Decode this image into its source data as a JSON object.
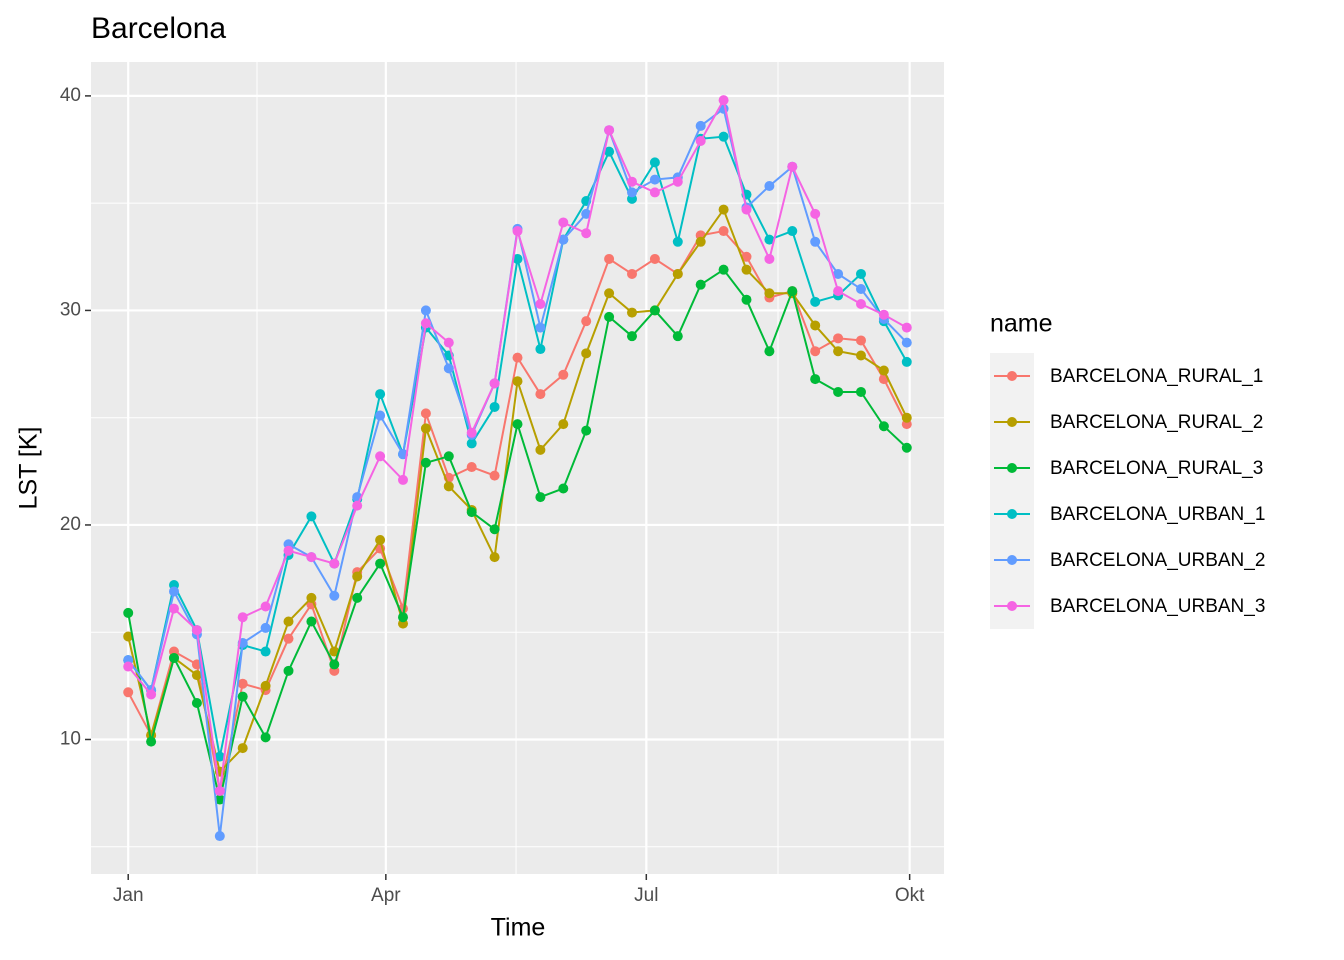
{
  "chart_data": {
    "type": "line",
    "title": "Barcelona",
    "x_label": "Time",
    "y_label": "LST [K]",
    "legend_title": "name",
    "legend_position": "right",
    "grid": true,
    "x": [
      0,
      8,
      16,
      24,
      32,
      40,
      48,
      56,
      64,
      72,
      80,
      88,
      96,
      104,
      112,
      120,
      128,
      136,
      144,
      152,
      160,
      168,
      176,
      184,
      192,
      200,
      208,
      216,
      224,
      232,
      240,
      248,
      256,
      264,
      272
    ],
    "xlim": [
      -13,
      285
    ],
    "xticks": [
      {
        "value": 0,
        "label": "Jan"
      },
      {
        "value": 90,
        "label": "Apr"
      },
      {
        "value": 181,
        "label": "Jul"
      },
      {
        "value": 273,
        "label": "Okt"
      }
    ],
    "ylim": [
      3.73,
      41.58
    ],
    "yticks": [
      10,
      20,
      30,
      40
    ],
    "series": [
      {
        "name": "BARCELONA_RURAL_1",
        "color": "#F8766D",
        "values": [
          12.2,
          10.2,
          14.1,
          13.5,
          7.6,
          12.6,
          12.3,
          14.7,
          16.3,
          13.2,
          17.8,
          18.9,
          16.1,
          25.2,
          22.2,
          22.7,
          22.3,
          27.8,
          26.1,
          27.0,
          29.5,
          32.4,
          31.7,
          32.4,
          31.7,
          33.5,
          33.7,
          32.5,
          30.6,
          30.9,
          28.1,
          28.7,
          28.6,
          26.8,
          24.7
        ]
      },
      {
        "name": "BARCELONA_RURAL_2",
        "color": "#B79F00",
        "values": [
          14.8,
          10.2,
          13.8,
          13.0,
          8.5,
          9.6,
          12.5,
          15.5,
          16.6,
          14.1,
          17.6,
          19.3,
          15.4,
          24.5,
          21.8,
          20.7,
          18.5,
          26.7,
          23.5,
          24.7,
          28.0,
          30.8,
          29.9,
          30.0,
          31.7,
          33.2,
          34.7,
          31.9,
          30.8,
          30.8,
          29.3,
          28.1,
          27.9,
          27.2,
          25.0
        ]
      },
      {
        "name": "BARCELONA_RURAL_3",
        "color": "#00BA38",
        "values": [
          15.9,
          9.9,
          13.8,
          11.7,
          7.2,
          12.0,
          10.1,
          13.2,
          15.5,
          13.5,
          16.6,
          18.2,
          15.7,
          22.9,
          23.2,
          20.6,
          19.8,
          24.7,
          21.3,
          21.7,
          24.4,
          29.7,
          28.8,
          30.0,
          28.8,
          31.2,
          31.9,
          30.5,
          28.1,
          30.9,
          26.8,
          26.2,
          26.2,
          24.6,
          23.6
        ]
      },
      {
        "name": "BARCELONA_URBAN_1",
        "color": "#00BFC4",
        "values": [
          13.7,
          12.3,
          17.2,
          15.1,
          9.2,
          14.4,
          14.1,
          18.6,
          20.4,
          18.2,
          21.2,
          26.1,
          23.3,
          29.2,
          27.9,
          23.8,
          25.5,
          32.4,
          28.2,
          33.3,
          35.1,
          37.4,
          35.2,
          36.9,
          33.2,
          38.0,
          38.1,
          35.4,
          33.3,
          33.7,
          30.4,
          30.7,
          31.7,
          29.5,
          27.6
        ]
      },
      {
        "name": "BARCELONA_URBAN_2",
        "color": "#619CFF",
        "values": [
          13.7,
          12.3,
          16.9,
          14.9,
          5.5,
          14.5,
          15.2,
          19.1,
          18.5,
          16.7,
          21.3,
          25.1,
          23.3,
          30.0,
          27.3,
          24.2,
          26.6,
          33.8,
          29.2,
          33.3,
          34.5,
          38.4,
          35.5,
          36.1,
          36.2,
          38.6,
          39.4,
          34.8,
          35.8,
          36.7,
          33.2,
          31.7,
          31.0,
          29.6,
          28.5
        ]
      },
      {
        "name": "BARCELONA_URBAN_3",
        "color": "#F564E3",
        "values": [
          13.4,
          12.1,
          16.1,
          15.1,
          7.6,
          15.7,
          16.2,
          18.8,
          18.5,
          18.2,
          20.9,
          23.2,
          22.1,
          29.4,
          28.5,
          24.3,
          26.6,
          33.7,
          30.3,
          34.1,
          33.6,
          38.4,
          36.0,
          35.5,
          36.0,
          37.9,
          39.8,
          34.7,
          32.4,
          36.7,
          34.5,
          30.9,
          30.3,
          29.8,
          29.2
        ]
      }
    ]
  }
}
